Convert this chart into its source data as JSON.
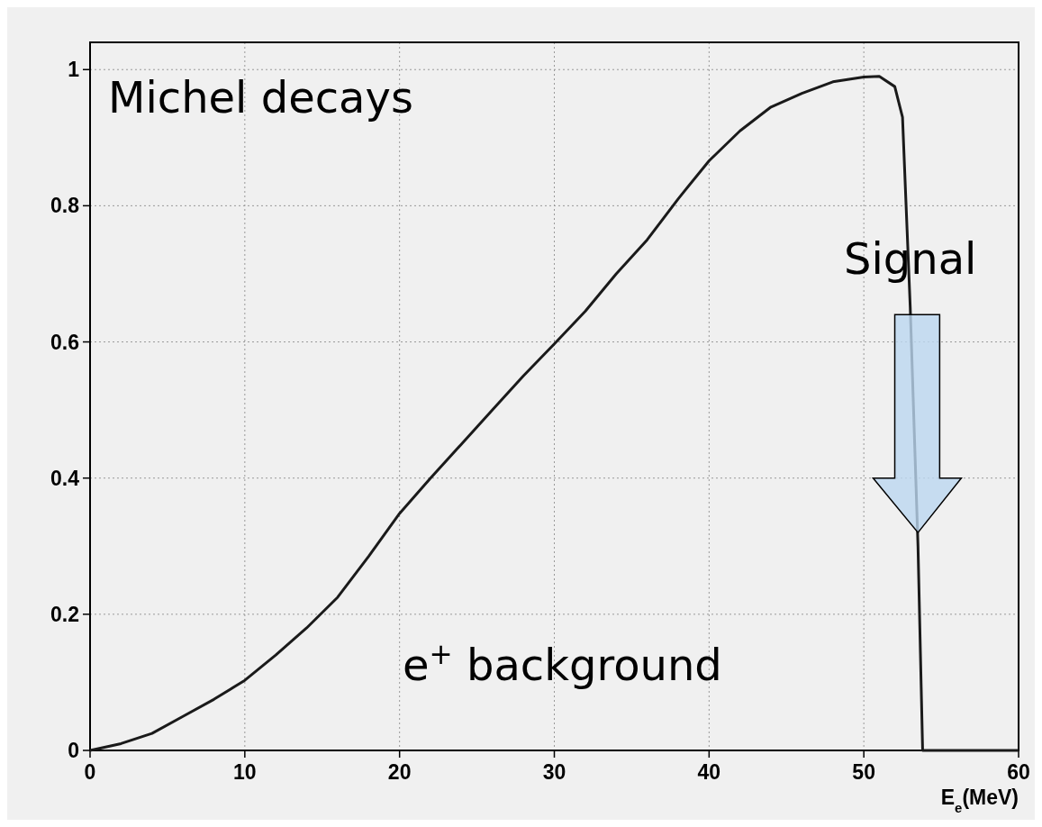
{
  "chart_data": {
    "type": "line",
    "xlabel": "E$_{e}$(MeV)",
    "x": [
      0,
      2,
      4,
      6,
      8,
      10,
      12,
      14,
      16,
      18,
      20,
      22,
      24,
      26,
      28,
      30,
      32,
      34,
      36,
      38,
      40,
      42,
      44,
      46,
      48,
      50,
      51,
      52,
      52.5,
      53,
      53.5,
      53.8,
      56,
      60
    ],
    "series": [
      {
        "color": "#1a1a1a",
        "values": [
          0,
          0.01,
          0.025,
          0.05,
          0.075,
          0.103,
          0.14,
          0.18,
          0.225,
          0.285,
          0.348,
          0.4,
          0.45,
          0.5,
          0.55,
          0.597,
          0.645,
          0.7,
          0.75,
          0.81,
          0.866,
          0.91,
          0.945,
          0.965,
          0.982,
          0.989,
          0.99,
          0.975,
          0.93,
          0.65,
          0.3,
          0,
          0,
          0
        ]
      }
    ],
    "xlim": [
      0,
      60
    ],
    "ylim": [
      0,
      1.04
    ],
    "xticks": [
      0,
      10,
      20,
      30,
      40,
      50,
      60
    ],
    "yticks": [
      0,
      0.2,
      0.4,
      0.6,
      0.8,
      1
    ],
    "grid": true,
    "line_style": "solid",
    "annotations": [
      "Michel decays",
      {
        "text": "Signal",
        "x": 53,
        "y": 0.7
      },
      "e$^{+}$ background"
    ]
  }
}
